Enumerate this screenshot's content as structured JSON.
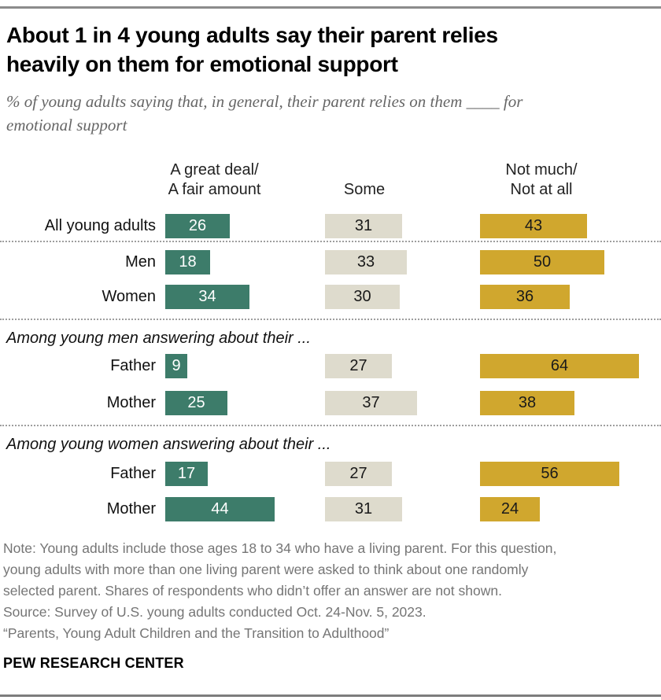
{
  "header": {
    "title_lines": [
      "About 1 in 4 young adults say their parent relies",
      "heavily on them for emotional support"
    ],
    "subtitle_lines": [
      "% of young adults saying that, in general, their parent relies on them ____ for",
      "emotional support"
    ]
  },
  "chart_data": {
    "type": "bar",
    "orientation": "horizontal",
    "units": "%",
    "title": "About 1 in 4 young adults say their parent relies heavily on them for emotional support",
    "subtitle": "% of young adults saying that, in general, their parent relies on them ____ for emotional support",
    "grid": false,
    "legend_position": "top-column-headers",
    "axis_range": [
      0,
      64
    ],
    "col_headers": [
      [
        "A great deal/",
        "A fair amount"
      ],
      [
        "Some"
      ],
      [
        "Not much/",
        "Not at all"
      ]
    ],
    "series_names": [
      "A great deal/A fair amount",
      "Some",
      "Not much/Not at all"
    ],
    "series_colors": [
      "#3D7C6A",
      "#DEDBCD",
      "#D0A72E"
    ],
    "series_text_colors": [
      "#FFFFFF",
      "#1A1A1A",
      "#1A1A1A"
    ],
    "rows": [
      {
        "type": "bars",
        "label": "All young adults",
        "values": [
          26,
          31,
          43
        ]
      },
      {
        "type": "divider"
      },
      {
        "type": "bars",
        "label": "Men",
        "values": [
          18,
          33,
          50
        ]
      },
      {
        "type": "bars",
        "label": "Women",
        "values": [
          34,
          30,
          36
        ]
      },
      {
        "type": "divider"
      },
      {
        "type": "section",
        "label": "Among young men answering about their ..."
      },
      {
        "type": "bars",
        "label": "Father",
        "values": [
          9,
          27,
          64
        ]
      },
      {
        "type": "bars",
        "label": "Mother",
        "values": [
          25,
          37,
          38
        ]
      },
      {
        "type": "divider"
      },
      {
        "type": "section",
        "label": "Among young women answering about their ..."
      },
      {
        "type": "bars",
        "label": "Father",
        "values": [
          17,
          27,
          56
        ]
      },
      {
        "type": "bars",
        "label": "Mother",
        "values": [
          44,
          31,
          24
        ]
      }
    ]
  },
  "notes": {
    "lines": [
      "Note: Young adults include those ages 18 to 34 who have a living parent. For this question,",
      "young adults with more than one living parent were asked to think about one randomly",
      "selected parent. Shares of respondents who didn’t offer an answer are not shown."
    ],
    "source": "Source: Survey of U.S. young adults conducted Oct. 24-Nov. 5, 2023.",
    "citation": "“Parents, Young Adult Children and the Transition to Adulthood”"
  },
  "footer": {
    "brand": "PEW RESEARCH CENTER"
  }
}
